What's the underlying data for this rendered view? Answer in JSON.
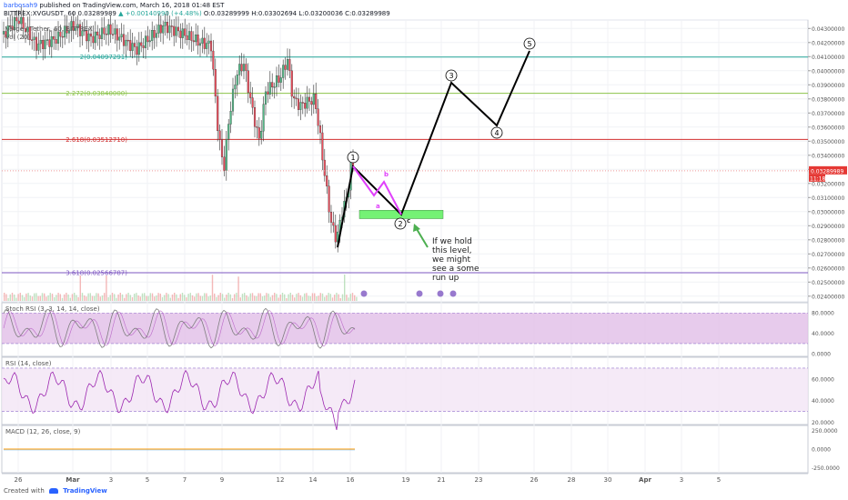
{
  "header": {
    "user": "barbosah9",
    "published": "published on TradingView.com, March 16, 2018 01:48 EST",
    "ohlc": "BITTREX:XVGUSDT, 60  0.03289989",
    "change": "▲ +0.00140990 (+4.48%)",
    "ohlc_rest": "O:0.03289999  H:0.03302694  L:0.03200036  C:0.03289989"
  },
  "panes": {
    "main_title": "Verge / Tether, 60, BITTREX",
    "vol_title": "Vol (20)",
    "stoch_title": "Stoch RSI (3, 3, 14, 14, close)",
    "rsi_title": "RSI (14, close)",
    "macd_title": "MACD (12, 26, close, 9)"
  },
  "footer": {
    "created": "Created with",
    "brand": "TradingView"
  },
  "chart_data": {
    "type": "candlestick",
    "symbol": "XVGUSDT",
    "exchange": "BITTREX",
    "interval": "60",
    "price_axis": [
      "0.04300000",
      "0.04200000",
      "0.04100000",
      "0.04000000",
      "0.03900000",
      "0.03800000",
      "0.03700000",
      "0.03600000",
      "0.03500000",
      "0.03400000",
      "0.03300000",
      "0.03200000",
      "0.03100000",
      "0.03000000",
      "0.02900000",
      "0.02800000",
      "0.02700000",
      "0.02600000",
      "0.02500000",
      "0.02400000"
    ],
    "price_range": [
      0.0236,
      0.0436
    ],
    "last_price": "0.03289989",
    "countdown": "11:18",
    "x_axis_labels": [
      "26",
      "Mar",
      "3",
      "5",
      "7",
      "9",
      "12",
      "14",
      "16",
      "19",
      "21",
      "23",
      "26",
      "28",
      "30",
      "Apr",
      "3",
      "5"
    ],
    "fib_levels": [
      {
        "label": "2(0.04097291)",
        "value": 0.04097291,
        "color": "#26a69a"
      },
      {
        "label": "2.272(0.03840000)",
        "value": 0.0384,
        "color": "#8bc34a"
      },
      {
        "label": "2.618(0.03512710)",
        "value": 0.0351271,
        "color": "#d32f2f"
      },
      {
        "label": "3.618(0.02566787)",
        "value": 0.02566787,
        "color": "#7e57c2"
      }
    ],
    "support_zone": [
      0.0295,
      0.0301
    ],
    "wave_labels": [
      "1",
      "2",
      "3",
      "4",
      "5"
    ],
    "corrective_labels": [
      "a",
      "b",
      "c"
    ],
    "annotation": "If we hold this level, we might see a some run up",
    "indicators": {
      "stoch_rsi": {
        "axis": [
          "80.0000",
          "40.0000",
          "0.0000"
        ],
        "band": [
          20,
          80
        ],
        "range": [
          -5,
          100
        ]
      },
      "rsi": {
        "axis": [
          "60.0000",
          "40.0000",
          "20.0000"
        ],
        "band": [
          30,
          70
        ],
        "range": [
          18,
          80
        ]
      },
      "macd": {
        "axis": [
          "250.0000",
          "0.0000",
          "-250.0000"
        ],
        "range": [
          -320,
          320
        ]
      }
    }
  }
}
